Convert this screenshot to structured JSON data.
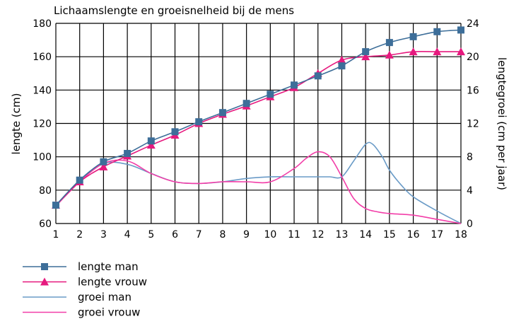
{
  "chart_data": {
    "type": "line",
    "title": "Lichaamslengte en groeisnelheid bij de mens",
    "xlabel": "",
    "ylabel": "lengte (cm)",
    "y2label": "lengtegroei (cm per jaar)",
    "x": [
      1,
      2,
      3,
      4,
      5,
      6,
      7,
      8,
      9,
      10,
      11,
      12,
      13,
      14,
      15,
      16,
      17,
      18
    ],
    "xlim": [
      1,
      18
    ],
    "ylim": [
      60,
      180
    ],
    "y2lim": [
      0,
      24
    ],
    "yticks": [
      60,
      80,
      100,
      120,
      140,
      160,
      180
    ],
    "y2ticks": [
      0,
      4,
      8,
      12,
      16,
      20,
      24
    ],
    "grid": true,
    "legend_position": "bottom-left",
    "series": [
      {
        "name": "lengte man",
        "axis": "left",
        "marker": "square",
        "color": "#3d6e99",
        "values": [
          71,
          86,
          97,
          102,
          109.5,
          115,
          121,
          126.5,
          132,
          137.5,
          143,
          148.5,
          154.5,
          163,
          168.5,
          172,
          175,
          176
        ]
      },
      {
        "name": "lengte vrouw",
        "axis": "left",
        "marker": "triangle",
        "color": "#e6197e",
        "values": [
          71,
          85,
          94,
          100.5,
          107,
          113,
          120,
          125.5,
          130.5,
          136,
          141.5,
          150,
          158,
          160,
          161,
          163,
          163,
          163
        ]
      },
      {
        "name": "groei man",
        "axis": "right",
        "marker": "none",
        "color": "#6a9bc7",
        "x": [
          1,
          2,
          3,
          4,
          5,
          6,
          7,
          8,
          9,
          10,
          11,
          12,
          12.5,
          13,
          13.5,
          14,
          14.3,
          14.7,
          15,
          15.5,
          16,
          17,
          18
        ],
        "values": [
          2.1,
          5.2,
          7.2,
          7.1,
          6.0,
          5.0,
          4.8,
          5.0,
          5.4,
          5.6,
          5.6,
          5.6,
          5.6,
          5.6,
          7.5,
          9.5,
          9.5,
          8.0,
          6.4,
          4.6,
          3.2,
          1.5,
          0
        ]
      },
      {
        "name": "groei vrouw",
        "axis": "right",
        "marker": "none",
        "color": "#f23ea8",
        "x": [
          1,
          2,
          3,
          4,
          5,
          6,
          7,
          8,
          9,
          10,
          11,
          11.5,
          12,
          12.5,
          13,
          13.5,
          14,
          14.5,
          15,
          16,
          17,
          18
        ],
        "values": [
          2.1,
          5.0,
          7.2,
          7.5,
          6.0,
          5.0,
          4.8,
          5.0,
          5.0,
          5.0,
          6.6,
          7.8,
          8.6,
          8.0,
          5.6,
          3.0,
          1.8,
          1.4,
          1.2,
          1.0,
          0.5,
          0
        ]
      }
    ]
  }
}
